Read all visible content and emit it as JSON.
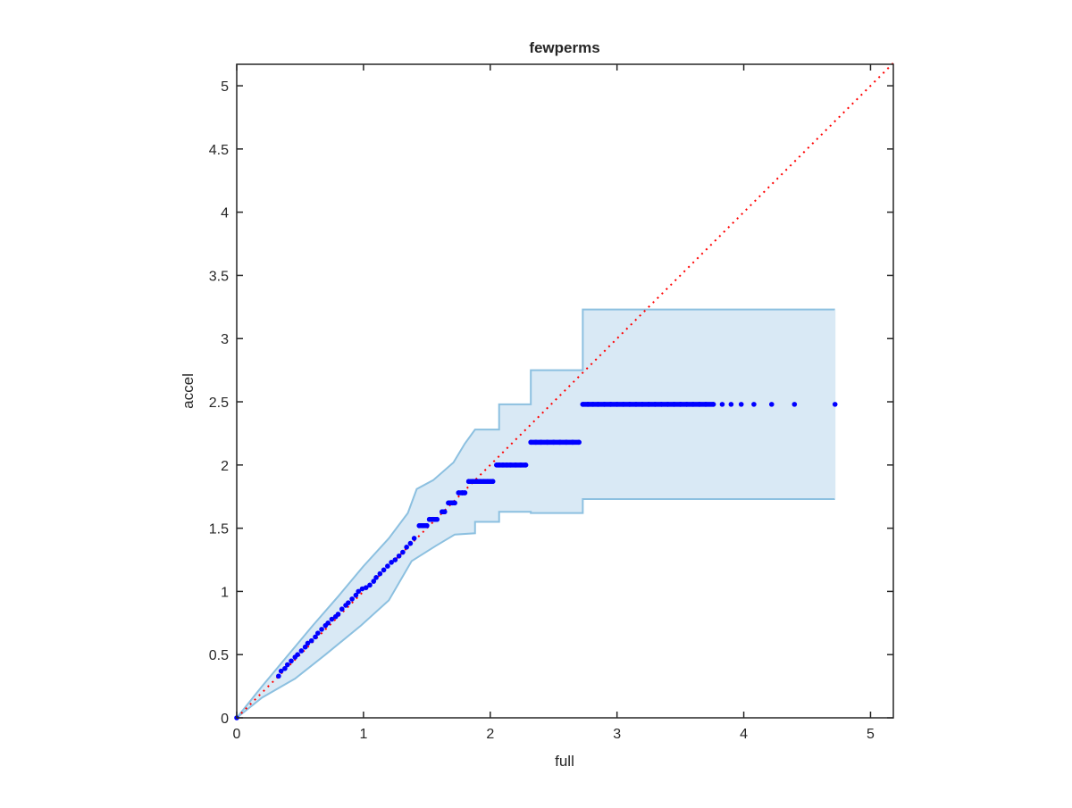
{
  "chart_data": {
    "type": "scatter",
    "title": "fewperms",
    "xlabel": "full",
    "ylabel": "accel",
    "xlim": [
      0,
      5.18
    ],
    "ylim": [
      0,
      5.17
    ],
    "xticks": [
      0,
      1,
      2,
      3,
      4,
      5
    ],
    "xtick_labels": [
      "0",
      "1",
      "2",
      "3",
      "4",
      "5"
    ],
    "yticks": [
      0,
      0.5,
      1,
      1.5,
      2,
      2.5,
      3,
      3.5,
      4,
      4.5,
      5
    ],
    "ytick_labels": [
      "0",
      "0.5",
      "1",
      "1.5",
      "2",
      "2.5",
      "3",
      "3.5",
      "4",
      "4.5",
      "5"
    ],
    "grid": false,
    "colors": {
      "points": "#0000ff",
      "reference": "#ff0000",
      "band_fill": "#d9e9f5",
      "band_edge": "#8cc0e0"
    },
    "reference_line": {
      "style": "dotted",
      "x": [
        0,
        5.18
      ],
      "y": [
        0,
        5.18
      ]
    },
    "band_upper": [
      [
        0,
        0
      ],
      [
        0.2,
        0.25
      ],
      [
        0.4,
        0.49
      ],
      [
        0.6,
        0.73
      ],
      [
        0.8,
        0.96
      ],
      [
        1.0,
        1.2
      ],
      [
        1.2,
        1.42
      ],
      [
        1.35,
        1.62
      ],
      [
        1.42,
        1.81
      ],
      [
        1.55,
        1.88
      ],
      [
        1.71,
        2.02
      ],
      [
        1.8,
        2.17
      ],
      [
        1.88,
        2.28
      ],
      [
        2.07,
        2.28
      ],
      [
        2.07,
        2.48
      ],
      [
        2.32,
        2.48
      ],
      [
        2.32,
        2.75
      ],
      [
        2.73,
        2.75
      ],
      [
        2.73,
        3.23
      ],
      [
        4.72,
        3.23
      ]
    ],
    "band_lower": [
      [
        0,
        0
      ],
      [
        0.2,
        0.16
      ],
      [
        0.46,
        0.31
      ],
      [
        0.7,
        0.5
      ],
      [
        0.98,
        0.73
      ],
      [
        1.2,
        0.93
      ],
      [
        1.38,
        1.24
      ],
      [
        1.57,
        1.36
      ],
      [
        1.72,
        1.45
      ],
      [
        1.88,
        1.46
      ],
      [
        1.88,
        1.55
      ],
      [
        2.07,
        1.55
      ],
      [
        2.07,
        1.63
      ],
      [
        2.32,
        1.63
      ],
      [
        2.32,
        1.62
      ],
      [
        2.73,
        1.62
      ],
      [
        2.73,
        1.73
      ],
      [
        4.72,
        1.73
      ]
    ],
    "points": {
      "x": [
        0,
        0.33,
        0.35,
        0.38,
        0.4,
        0.43,
        0.46,
        0.48,
        0.51,
        0.54,
        0.56,
        0.59,
        0.62,
        0.64,
        0.67,
        0.7,
        0.72,
        0.75,
        0.78,
        0.8,
        0.83,
        0.86,
        0.88,
        0.91,
        0.94,
        0.96,
        0.99,
        1.02,
        1.05,
        1.08,
        1.1,
        1.13,
        1.16,
        1.19,
        1.22,
        1.25,
        1.28,
        1.31,
        1.34,
        1.37,
        1.4,
        1.44,
        1.47,
        1.5,
        1.52,
        1.55,
        1.58,
        1.62,
        1.64,
        1.67,
        1.7,
        1.72,
        1.75,
        1.78,
        1.8,
        1.83,
        1.86,
        1.89,
        1.92,
        1.95,
        1.98,
        2.02,
        2.05,
        2.07,
        2.1,
        2.13,
        2.16,
        2.2,
        2.24,
        2.28,
        2.32,
        2.36,
        2.4,
        2.45,
        2.5,
        2.55,
        2.6,
        2.65,
        2.7,
        2.73,
        2.77,
        2.81,
        2.85,
        2.9,
        2.95,
        3.0,
        3.05,
        3.1,
        3.15,
        3.2,
        3.25,
        3.3,
        3.35,
        3.4,
        3.45,
        3.5,
        3.55,
        3.6,
        3.65,
        3.7,
        3.76,
        3.83,
        3.9,
        3.98,
        4.08,
        4.22,
        4.4,
        4.72
      ],
      "y": [
        0,
        0.33,
        0.37,
        0.39,
        0.42,
        0.45,
        0.48,
        0.5,
        0.53,
        0.56,
        0.59,
        0.61,
        0.64,
        0.67,
        0.7,
        0.73,
        0.75,
        0.78,
        0.8,
        0.82,
        0.86,
        0.89,
        0.91,
        0.94,
        0.97,
        1.0,
        1.02,
        1.03,
        1.05,
        1.08,
        1.11,
        1.14,
        1.17,
        1.2,
        1.23,
        1.25,
        1.28,
        1.31,
        1.35,
        1.38,
        1.42,
        1.52,
        1.52,
        1.52,
        1.57,
        1.57,
        1.57,
        1.63,
        1.63,
        1.7,
        1.7,
        1.7,
        1.78,
        1.78,
        1.78,
        1.87,
        1.87,
        1.87,
        1.87,
        1.87,
        1.87,
        1.87,
        2.0,
        2.0,
        2.0,
        2.0,
        2.0,
        2.0,
        2.0,
        2.0,
        2.18,
        2.18,
        2.18,
        2.18,
        2.18,
        2.18,
        2.18,
        2.18,
        2.18,
        2.48,
        2.48,
        2.48,
        2.48,
        2.48,
        2.48,
        2.48,
        2.48,
        2.48,
        2.48,
        2.48,
        2.48,
        2.48,
        2.48,
        2.48,
        2.48,
        2.48,
        2.48,
        2.48,
        2.48,
        2.48,
        2.48,
        2.48,
        2.48,
        2.48,
        2.48,
        2.48,
        2.48,
        2.48
      ]
    }
  }
}
